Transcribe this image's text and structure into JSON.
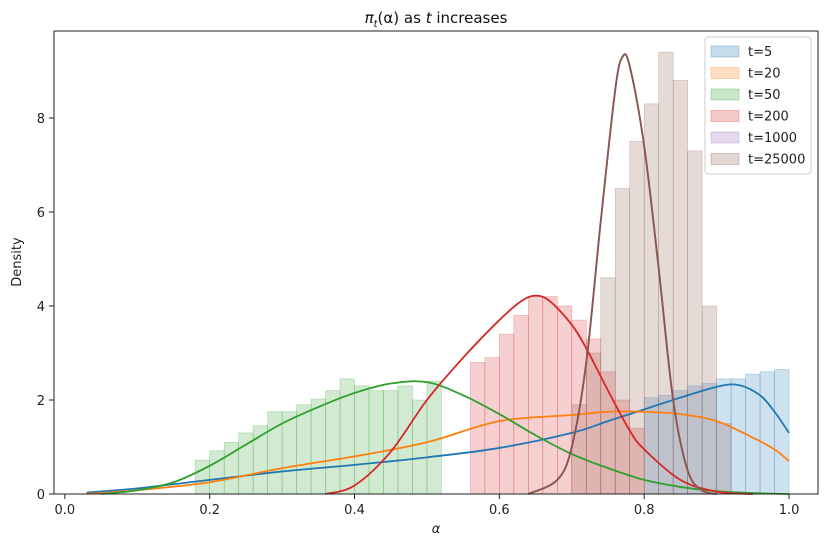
{
  "chart_data": {
    "type": "area",
    "title": "π_t(α) as t increases",
    "title_parts": {
      "pi": "π",
      "sub": "t",
      "mid": "(α) as ",
      "t": "t",
      "end": " increases"
    },
    "xlabel": "α",
    "ylabel": "Density",
    "xlim": [
      -0.015,
      1.04
    ],
    "ylim": [
      0,
      9.85
    ],
    "xticks": [
      0.0,
      0.2,
      0.4,
      0.6,
      0.8,
      1.0
    ],
    "xtick_labels": [
      "0.0",
      "0.2",
      "0.4",
      "0.6",
      "0.8",
      "1.0"
    ],
    "yticks": [
      0,
      2,
      4,
      6,
      8
    ],
    "ytick_labels": [
      "0",
      "2",
      "4",
      "6",
      "8"
    ],
    "grid": false,
    "legend_position": "top-right",
    "series": [
      {
        "name": "t=5",
        "color": "#1f77b4",
        "hist_bins": [
          [
            0.8,
            0.82,
            2.05
          ],
          [
            0.82,
            0.84,
            2.1
          ],
          [
            0.84,
            0.86,
            2.2
          ],
          [
            0.86,
            0.88,
            2.3
          ],
          [
            0.88,
            0.9,
            2.35
          ],
          [
            0.9,
            0.92,
            2.45
          ],
          [
            0.92,
            0.94,
            2.45
          ],
          [
            0.94,
            0.96,
            2.55
          ],
          [
            0.96,
            0.98,
            2.6
          ],
          [
            0.98,
            1.0,
            2.65
          ]
        ],
        "kde_x": [
          0.03,
          0.1,
          0.2,
          0.3,
          0.4,
          0.5,
          0.6,
          0.7,
          0.75,
          0.8,
          0.85,
          0.9,
          0.93,
          0.96,
          0.98,
          1.0
        ],
        "kde_y": [
          0.03,
          0.12,
          0.3,
          0.48,
          0.62,
          0.78,
          0.98,
          1.3,
          1.55,
          1.8,
          2.05,
          2.28,
          2.32,
          2.1,
          1.75,
          1.3
        ]
      },
      {
        "name": "t=20",
        "color": "#ff7f0e",
        "hist_bins": [],
        "kde_x": [
          0.03,
          0.1,
          0.2,
          0.3,
          0.4,
          0.5,
          0.6,
          0.7,
          0.75,
          0.8,
          0.85,
          0.9,
          0.95,
          0.98,
          1.0
        ],
        "kde_y": [
          0.0,
          0.08,
          0.25,
          0.55,
          0.8,
          1.1,
          1.55,
          1.68,
          1.75,
          1.75,
          1.7,
          1.55,
          1.2,
          0.95,
          0.7
        ]
      },
      {
        "name": "t=50",
        "color": "#2ca02c",
        "hist_bins": [
          [
            0.18,
            0.2,
            0.72
          ],
          [
            0.2,
            0.22,
            0.92
          ],
          [
            0.22,
            0.24,
            1.1
          ],
          [
            0.24,
            0.26,
            1.3
          ],
          [
            0.26,
            0.28,
            1.45
          ],
          [
            0.28,
            0.3,
            1.75
          ],
          [
            0.3,
            0.32,
            1.75
          ],
          [
            0.32,
            0.34,
            1.9
          ],
          [
            0.34,
            0.36,
            2.02
          ],
          [
            0.36,
            0.38,
            2.2
          ],
          [
            0.38,
            0.4,
            2.45
          ],
          [
            0.4,
            0.42,
            2.3
          ],
          [
            0.42,
            0.44,
            2.2
          ],
          [
            0.44,
            0.46,
            2.2
          ],
          [
            0.46,
            0.48,
            2.3
          ],
          [
            0.48,
            0.5,
            2.0
          ],
          [
            0.5,
            0.52,
            2.4
          ]
        ],
        "kde_x": [
          0.05,
          0.1,
          0.15,
          0.2,
          0.25,
          0.3,
          0.35,
          0.4,
          0.45,
          0.5,
          0.55,
          0.6,
          0.65,
          0.7,
          0.75,
          0.8,
          0.85,
          0.9,
          0.95,
          1.0
        ],
        "kde_y": [
          0.0,
          0.08,
          0.25,
          0.6,
          1.05,
          1.5,
          1.85,
          2.15,
          2.35,
          2.38,
          2.1,
          1.7,
          1.25,
          0.85,
          0.55,
          0.3,
          0.15,
          0.06,
          0.02,
          0.0
        ]
      },
      {
        "name": "t=200",
        "color": "#d62728",
        "hist_bins": [
          [
            0.56,
            0.58,
            2.8
          ],
          [
            0.58,
            0.6,
            2.9
          ],
          [
            0.6,
            0.62,
            3.4
          ],
          [
            0.62,
            0.64,
            3.8
          ],
          [
            0.64,
            0.66,
            4.2
          ],
          [
            0.66,
            0.68,
            4.2
          ],
          [
            0.68,
            0.7,
            4.0
          ],
          [
            0.7,
            0.72,
            3.7
          ],
          [
            0.72,
            0.74,
            3.3
          ],
          [
            0.74,
            0.76,
            2.6
          ],
          [
            0.76,
            0.78,
            2.0
          ],
          [
            0.78,
            0.8,
            1.4
          ]
        ],
        "kde_x": [
          0.36,
          0.4,
          0.45,
          0.5,
          0.55,
          0.6,
          0.63,
          0.65,
          0.67,
          0.7,
          0.72,
          0.75,
          0.78,
          0.8,
          0.85,
          0.9,
          0.95
        ],
        "kde_y": [
          0.0,
          0.18,
          0.9,
          2.0,
          2.9,
          3.7,
          4.1,
          4.22,
          4.1,
          3.6,
          3.1,
          2.2,
          1.35,
          0.95,
          0.3,
          0.05,
          0.0
        ]
      },
      {
        "name": "t=1000",
        "color": "#9467bd",
        "hist_bins": [],
        "kde_x": [
          0.64,
          0.68,
          0.7,
          0.72,
          0.74,
          0.76,
          0.77,
          0.78,
          0.8,
          0.82,
          0.84,
          0.86,
          0.88,
          0.9
        ],
        "kde_y": [
          0.0,
          0.3,
          1.0,
          2.8,
          5.8,
          8.6,
          9.3,
          9.1,
          7.4,
          4.8,
          2.0,
          0.5,
          0.08,
          0.0
        ]
      },
      {
        "name": "t=25000",
        "color": "#8c564b",
        "hist_bins": [
          [
            0.7,
            0.72,
            1.9
          ],
          [
            0.72,
            0.74,
            3.0
          ],
          [
            0.74,
            0.76,
            4.6
          ],
          [
            0.76,
            0.78,
            6.5
          ],
          [
            0.78,
            0.8,
            7.5
          ],
          [
            0.8,
            0.82,
            8.3
          ],
          [
            0.82,
            0.84,
            9.4
          ],
          [
            0.84,
            0.86,
            8.8
          ],
          [
            0.86,
            0.88,
            7.3
          ],
          [
            0.88,
            0.9,
            4.0
          ],
          [
            0.9,
            0.92,
            1.5
          ]
        ],
        "kde_x": [
          0.64,
          0.68,
          0.7,
          0.72,
          0.74,
          0.76,
          0.77,
          0.78,
          0.8,
          0.82,
          0.84,
          0.86,
          0.88,
          0.9
        ],
        "kde_y": [
          0.0,
          0.3,
          1.0,
          2.8,
          5.8,
          8.6,
          9.3,
          9.1,
          7.4,
          4.8,
          2.0,
          0.5,
          0.08,
          0.0
        ]
      }
    ]
  }
}
